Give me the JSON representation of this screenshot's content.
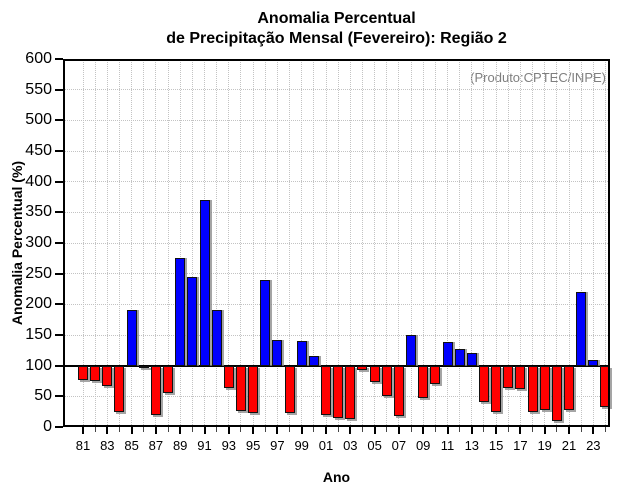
{
  "title": {
    "line1": "Anomalia Percentual",
    "line2": "de Precipitação Mensal (Fevereiro): Região 2"
  },
  "annotation": "(Produto:CPTEC/INPE)",
  "colors": {
    "above_baseline": "#0000ff",
    "below_baseline": "#ff0000",
    "annotation_gray": "#7f7f7f",
    "grid": "#c3c3c3",
    "axis": "#000000"
  },
  "chart_data": {
    "type": "bar",
    "title": "Anomalia Percentual de Precipitação Mensal (Fevereiro): Região 2",
    "xlabel": "Ano",
    "ylabel": "Anomalia Percentual (%)",
    "ylim": [
      0,
      600
    ],
    "ytick_step": 50,
    "yticks": [
      0,
      50,
      100,
      150,
      200,
      250,
      300,
      350,
      400,
      450,
      500,
      550,
      600
    ],
    "baseline": 100,
    "grid": true,
    "legend": "none",
    "years": [
      1981,
      1982,
      1983,
      1984,
      1985,
      1986,
      1987,
      1988,
      1989,
      1990,
      1991,
      1992,
      1993,
      1994,
      1995,
      1996,
      1997,
      1998,
      1999,
      2000,
      2001,
      2002,
      2003,
      2004,
      2005,
      2006,
      2007,
      2008,
      2009,
      2010,
      2011,
      2012,
      2013,
      2014,
      2015,
      2016,
      2017,
      2018,
      2019,
      2020,
      2021,
      2022,
      2023,
      2024
    ],
    "values": [
      77,
      75,
      67,
      25,
      190,
      97,
      20,
      55,
      275,
      245,
      370,
      190,
      63,
      26,
      23,
      240,
      142,
      22,
      140,
      115,
      20,
      14,
      13,
      93,
      73,
      50,
      18,
      150,
      47,
      70,
      138,
      127,
      120,
      40,
      25,
      64,
      62,
      25,
      28,
      10,
      27,
      220,
      110,
      33
    ],
    "xtick_labels": [
      "81",
      "83",
      "85",
      "87",
      "89",
      "91",
      "93",
      "95",
      "97",
      "99",
      "01",
      "03",
      "05",
      "07",
      "09",
      "11",
      "13",
      "15",
      "17",
      "19",
      "21",
      "23"
    ],
    "series_rule": "values >= 100 drawn blue above the 100% baseline, values < 100 drawn red below it"
  }
}
